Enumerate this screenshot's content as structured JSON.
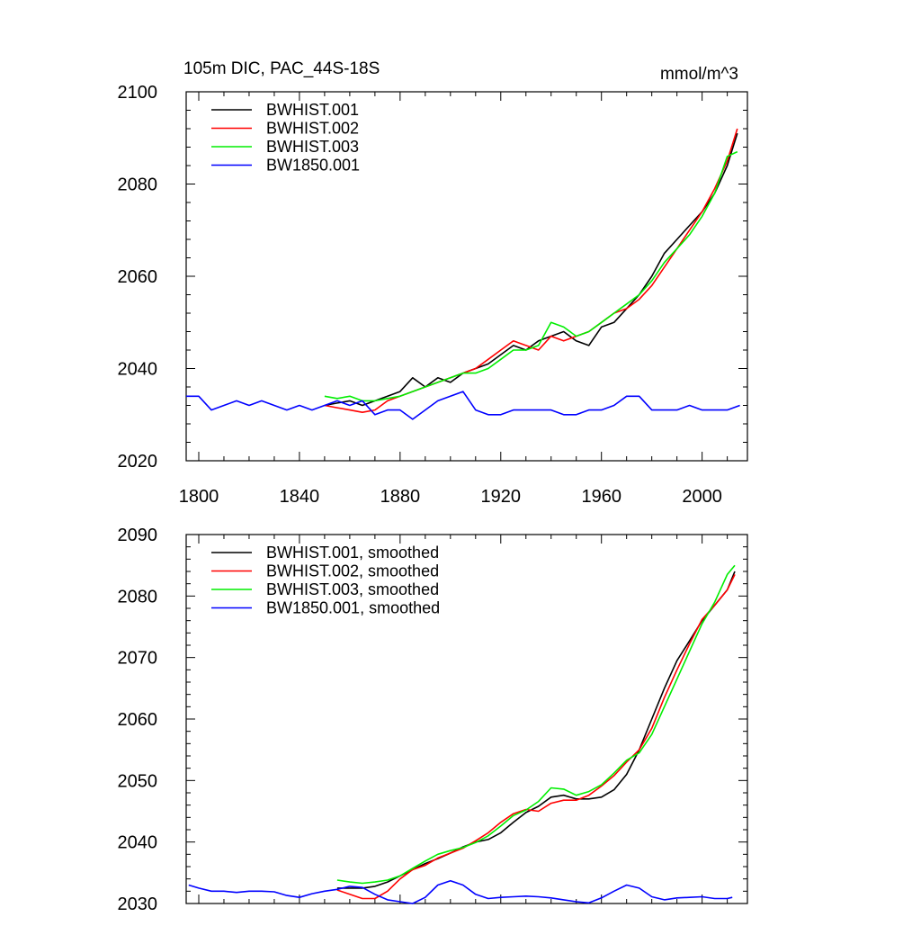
{
  "chart_data": [
    {
      "type": "line",
      "title": "105m DIC, PAC_44S-18S",
      "units": "mmol/m^3",
      "xlim": [
        1795,
        2018
      ],
      "ylim": [
        2020,
        2100
      ],
      "xticks": [
        1800,
        1840,
        1880,
        1920,
        1960,
        2000
      ],
      "yticks": [
        2020,
        2040,
        2060,
        2080,
        2100
      ],
      "legend_position": "top-left",
      "series": [
        {
          "name": "BWHIST.001",
          "color": "#000000",
          "x": [
            1850,
            1855,
            1860,
            1865,
            1870,
            1875,
            1880,
            1885,
            1890,
            1895,
            1900,
            1905,
            1910,
            1915,
            1920,
            1925,
            1930,
            1935,
            1940,
            1945,
            1950,
            1955,
            1960,
            1965,
            1970,
            1975,
            1980,
            1985,
            1990,
            1995,
            2000,
            2005,
            2010,
            2014
          ],
          "y": [
            2032,
            2032.5,
            2033,
            2032,
            2033,
            2034,
            2035,
            2038,
            2036,
            2038,
            2037,
            2039,
            2040,
            2041,
            2043,
            2045,
            2044,
            2046,
            2047,
            2048,
            2046,
            2045,
            2049,
            2050,
            2053,
            2056,
            2060,
            2065,
            2068,
            2071,
            2074,
            2078,
            2084,
            2091
          ]
        },
        {
          "name": "BWHIST.002",
          "color": "#ff0000",
          "x": [
            1850,
            1855,
            1860,
            1865,
            1870,
            1875,
            1880,
            1885,
            1890,
            1895,
            1900,
            1905,
            1910,
            1915,
            1920,
            1925,
            1930,
            1935,
            1940,
            1945,
            1950,
            1955,
            1960,
            1965,
            1970,
            1975,
            1980,
            1985,
            1990,
            1995,
            2000,
            2005,
            2010,
            2014
          ],
          "y": [
            2032,
            2031.5,
            2031,
            2030.5,
            2031,
            2033,
            2034,
            2035,
            2036,
            2037,
            2038,
            2039,
            2040,
            2042,
            2044,
            2046,
            2045,
            2044,
            2047,
            2046,
            2047,
            2048,
            2050,
            2052,
            2053,
            2055,
            2058,
            2062,
            2066,
            2070,
            2074,
            2079,
            2085,
            2092
          ]
        },
        {
          "name": "BWHIST.003",
          "color": "#00ee00",
          "x": [
            1850,
            1855,
            1860,
            1865,
            1870,
            1875,
            1880,
            1885,
            1890,
            1895,
            1900,
            1905,
            1910,
            1915,
            1920,
            1925,
            1930,
            1935,
            1940,
            1945,
            1950,
            1955,
            1960,
            1965,
            1970,
            1975,
            1980,
            1985,
            1990,
            1995,
            2000,
            2005,
            2010,
            2014
          ],
          "y": [
            2034,
            2033.5,
            2034,
            2033,
            2033,
            2033.5,
            2034,
            2035,
            2036,
            2037,
            2038,
            2039,
            2039,
            2040,
            2042,
            2044,
            2044,
            2045,
            2050,
            2049,
            2047,
            2048,
            2050,
            2052,
            2054,
            2056,
            2059,
            2063,
            2066,
            2069,
            2073,
            2078,
            2086,
            2087
          ]
        },
        {
          "name": "BW1850.001",
          "color": "#0000ff",
          "x": [
            1795,
            1800,
            1805,
            1810,
            1815,
            1820,
            1825,
            1830,
            1835,
            1840,
            1845,
            1850,
            1855,
            1860,
            1865,
            1870,
            1875,
            1880,
            1885,
            1890,
            1895,
            1900,
            1905,
            1910,
            1915,
            1920,
            1925,
            1930,
            1935,
            1940,
            1945,
            1950,
            1955,
            1960,
            1965,
            1970,
            1975,
            1980,
            1985,
            1990,
            1995,
            2000,
            2005,
            2010,
            2015
          ],
          "y": [
            2034,
            2034,
            2031,
            2032,
            2033,
            2032,
            2033,
            2032,
            2031,
            2032,
            2031,
            2032,
            2033,
            2032,
            2033,
            2030,
            2031,
            2031,
            2029,
            2031,
            2033,
            2034,
            2035,
            2031,
            2030,
            2030,
            2031,
            2031,
            2031,
            2031,
            2030,
            2030,
            2031,
            2031,
            2032,
            2034,
            2034,
            2031,
            2031,
            2031,
            2032,
            2031,
            2031,
            2031,
            2032
          ]
        }
      ]
    },
    {
      "type": "line",
      "xlim": [
        1795,
        2018
      ],
      "ylim": [
        2030,
        2090
      ],
      "yticks": [
        2030,
        2040,
        2050,
        2060,
        2070,
        2080,
        2090
      ],
      "legend_position": "top-left",
      "series": [
        {
          "name": "BWHIST.001, smoothed",
          "color": "#000000",
          "x": [
            1855,
            1860,
            1865,
            1870,
            1875,
            1880,
            1885,
            1890,
            1895,
            1900,
            1905,
            1910,
            1915,
            1920,
            1925,
            1930,
            1935,
            1940,
            1945,
            1950,
            1955,
            1960,
            1965,
            1970,
            1975,
            1980,
            1985,
            1990,
            1995,
            2000,
            2005,
            2010,
            2013
          ],
          "y": [
            2032.5,
            2032.5,
            2032.5,
            2032.8,
            2033.5,
            2034.5,
            2035.5,
            2036.5,
            2037.3,
            2038.2,
            2039.2,
            2040,
            2040.4,
            2041.5,
            2043.2,
            2044.8,
            2045.8,
            2047.3,
            2047.6,
            2047,
            2047,
            2047.3,
            2048.5,
            2051,
            2055,
            2060,
            2065,
            2069.5,
            2072.7,
            2076,
            2078.5,
            2081,
            2084
          ]
        },
        {
          "name": "BWHIST.002, smoothed",
          "color": "#ff0000",
          "x": [
            1855,
            1860,
            1865,
            1870,
            1875,
            1880,
            1885,
            1890,
            1895,
            1900,
            1905,
            1910,
            1915,
            1920,
            1925,
            1930,
            1935,
            1940,
            1945,
            1950,
            1955,
            1960,
            1965,
            1970,
            1975,
            1980,
            1985,
            1990,
            1995,
            2000,
            2005,
            2010,
            2013
          ],
          "y": [
            2032.2,
            2031.5,
            2030.8,
            2030.8,
            2032,
            2034,
            2035.5,
            2036.2,
            2037.4,
            2038.2,
            2039,
            2040.2,
            2041.5,
            2043.2,
            2044.6,
            2045.3,
            2045,
            2046.3,
            2046.8,
            2046.8,
            2047.6,
            2049.1,
            2050.8,
            2053,
            2055,
            2058.5,
            2063.5,
            2068,
            2072.2,
            2076.2,
            2078.5,
            2081,
            2083.5
          ]
        },
        {
          "name": "BWHIST.003, smoothed",
          "color": "#00ee00",
          "x": [
            1855,
            1860,
            1865,
            1870,
            1875,
            1880,
            1885,
            1890,
            1895,
            1900,
            1905,
            1910,
            1915,
            1920,
            1925,
            1930,
            1935,
            1940,
            1945,
            1950,
            1955,
            1960,
            1965,
            1970,
            1975,
            1980,
            1985,
            1990,
            1995,
            2000,
            2005,
            2010,
            2013
          ],
          "y": [
            2033.8,
            2033.5,
            2033.3,
            2033.5,
            2033.8,
            2034.5,
            2035.7,
            2036.9,
            2038,
            2038.6,
            2039.1,
            2039.9,
            2041,
            2042.6,
            2044.3,
            2045.2,
            2046.6,
            2048.8,
            2048.6,
            2047.6,
            2048.2,
            2049.3,
            2051.2,
            2053.3,
            2054.5,
            2057.5,
            2062,
            2066.5,
            2071,
            2075.5,
            2079,
            2083.5,
            2085
          ]
        },
        {
          "name": "BW1850.001, smoothed",
          "color": "#0000ff",
          "x": [
            1796,
            1800,
            1805,
            1810,
            1815,
            1820,
            1825,
            1830,
            1835,
            1840,
            1845,
            1850,
            1855,
            1860,
            1865,
            1870,
            1875,
            1880,
            1885,
            1890,
            1895,
            1900,
            1905,
            1910,
            1915,
            1920,
            1925,
            1930,
            1935,
            1940,
            1945,
            1950,
            1955,
            1960,
            1965,
            1970,
            1975,
            1980,
            1985,
            1990,
            1995,
            2000,
            2005,
            2010,
            2012
          ],
          "y": [
            2033,
            2032.5,
            2032,
            2032,
            2031.8,
            2032,
            2032,
            2031.9,
            2031.3,
            2031,
            2031.6,
            2032,
            2032.3,
            2032.8,
            2032.6,
            2031.5,
            2030.6,
            2030.3,
            2030,
            2031,
            2033,
            2033.7,
            2033,
            2031.5,
            2030.8,
            2031,
            2031.1,
            2031.2,
            2031.1,
            2030.9,
            2030.6,
            2030.3,
            2030.1,
            2030.9,
            2032,
            2033,
            2032.5,
            2031.1,
            2030.6,
            2030.9,
            2031,
            2031.1,
            2030.8,
            2030.8,
            2031
          ]
        }
      ]
    }
  ]
}
